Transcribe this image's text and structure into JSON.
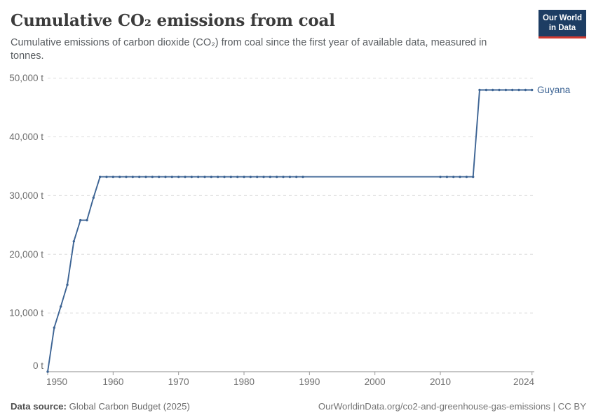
{
  "header": {
    "title": "Cumulative CO₂ emissions from coal",
    "subtitle": "Cumulative emissions of carbon dioxide (CO₂) from coal since the first year of available data, measured in tonnes.",
    "logo": {
      "line1": "Our World",
      "line2": "in Data",
      "bg_color": "#1d3d63",
      "bar_color": "#cf3a31"
    }
  },
  "footer": {
    "datasource_label": "Data source:",
    "datasource_value": "Global Carbon Budget (2025)",
    "license": "OurWorldinData.org/co2-and-greenhouse-gas-emissions | CC BY"
  },
  "chart_data": {
    "type": "line",
    "title": "Cumulative CO₂ emissions from coal",
    "xlabel": "",
    "ylabel": "",
    "unit": "t",
    "xlim": [
      1950,
      2024
    ],
    "ylim": [
      0,
      50000
    ],
    "x_ticks": [
      1950,
      1960,
      1970,
      1980,
      1990,
      2000,
      2010,
      2024
    ],
    "x_tick_labels": [
      "1950",
      "1960",
      "1970",
      "1980",
      "1990",
      "2000",
      "2010",
      "2024"
    ],
    "y_ticks": [
      0,
      10000,
      20000,
      30000,
      40000,
      50000
    ],
    "y_tick_labels": [
      "0 t",
      "10,000 t",
      "20,000 t",
      "30,000 t",
      "40,000 t",
      "50,000 t"
    ],
    "grid": "horizontal-dashed",
    "legend": "end-of-line-label",
    "colors": {
      "grid": "#dcdcdc",
      "axis": "#8e8e8e",
      "tick": "#9a9a9a",
      "tick_label": "#6e6e6e"
    },
    "series": [
      {
        "name": "Guyana",
        "color": "#3d6494",
        "points_rise": [
          [
            1950,
            0
          ],
          [
            1951,
            7500
          ],
          [
            1952,
            11100
          ],
          [
            1953,
            14800
          ],
          [
            1954,
            22200
          ],
          [
            1955,
            25800
          ],
          [
            1956,
            25800
          ],
          [
            1957,
            29650
          ],
          [
            1958,
            33200
          ]
        ],
        "plateau1": {
          "from": 1959,
          "to": 2015,
          "value": 33200
        },
        "plateau2": {
          "from": 2016,
          "to": 2024,
          "value": 48000
        },
        "marker_year_ranges": [
          [
            1950,
            1989
          ],
          [
            2010,
            2024
          ]
        ]
      }
    ]
  }
}
